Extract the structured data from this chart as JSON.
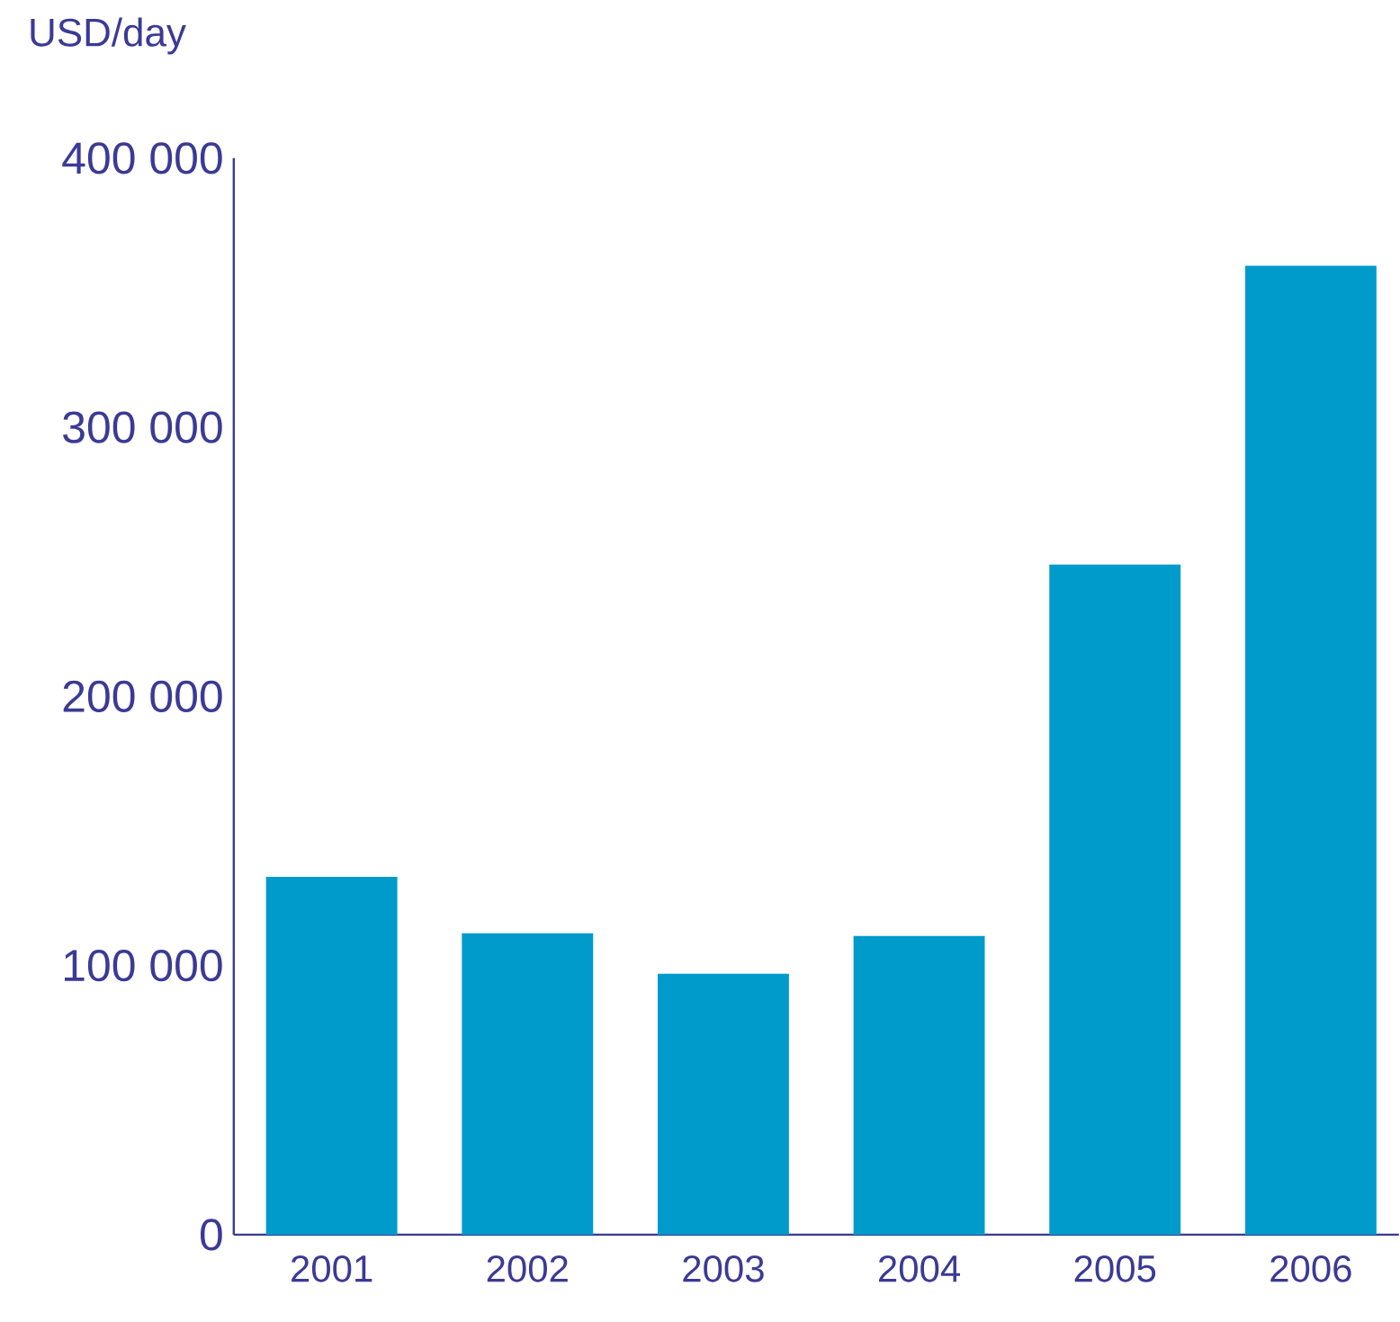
{
  "chart_data": {
    "type": "bar",
    "ylabel": "USD/day",
    "categories": [
      "2001",
      "2002",
      "2003",
      "2004",
      "2005",
      "2006"
    ],
    "values": [
      133000,
      112000,
      97000,
      111000,
      249000,
      360000
    ],
    "color": "#009bcb",
    "ylim": [
      0,
      400000
    ],
    "yticks": [
      0,
      {
        "value": 100000,
        "label": "100 000"
      },
      {
        "value": 200000,
        "label": "200 000"
      },
      {
        "value": 300000,
        "label": "300 000"
      },
      {
        "value": 400000,
        "label": "400 000"
      }
    ],
    "grid": false
  }
}
